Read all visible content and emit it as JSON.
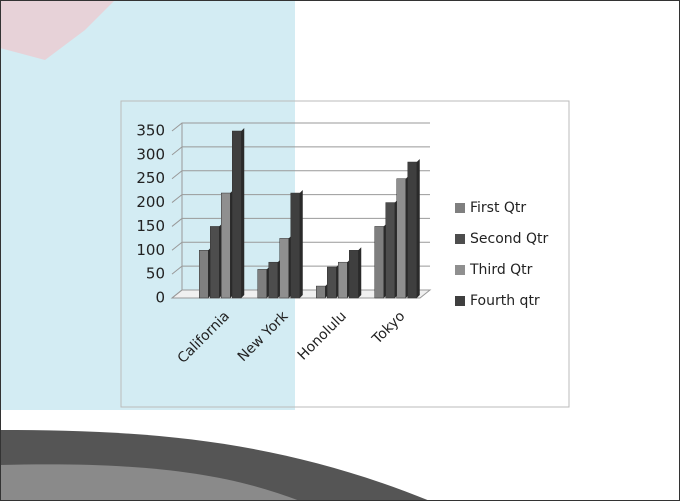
{
  "chart_data": {
    "type": "bar",
    "categories": [
      "California",
      "New York",
      "Honolulu",
      "Tokyo"
    ],
    "series": [
      {
        "name": "First Qtr",
        "color": "#7f7f7f",
        "values": [
          100,
          60,
          25,
          150
        ]
      },
      {
        "name": "Second Qtr",
        "color": "#4d4d4d",
        "values": [
          150,
          75,
          65,
          200
        ]
      },
      {
        "name": "Third Qtr",
        "color": "#8f8f8f",
        "values": [
          220,
          125,
          75,
          250
        ]
      },
      {
        "name": "Fourth qtr",
        "color": "#3f3f3f",
        "values": [
          350,
          220,
          100,
          285
        ]
      }
    ],
    "ylim": [
      0,
      350
    ],
    "yticks": [
      0,
      50,
      100,
      150,
      200,
      250,
      300,
      350
    ],
    "grid": true,
    "legend": "right"
  }
}
